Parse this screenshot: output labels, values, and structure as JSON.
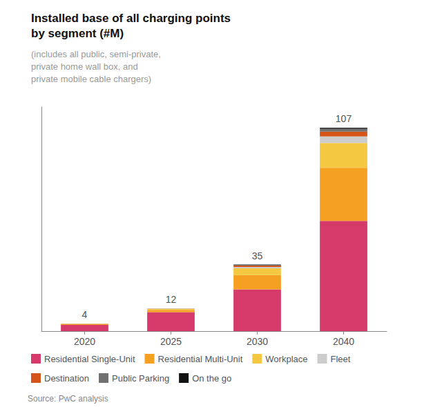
{
  "chart_data": {
    "type": "bar",
    "stacked": true,
    "title": "Installed base of all charging points\nby segment (#M)",
    "subtitle": "(includes all public, semi-private,\nprivate home wall box, and\nprivate mobile cable chargers)",
    "annotations": [
      "Source: PwC analysis"
    ],
    "categories": [
      "2020",
      "2025",
      "2030",
      "2040"
    ],
    "series": [
      {
        "name": "Residential Single-Unit",
        "color": "#D63A6A",
        "values": [
          3.3,
          10.0,
          22.0,
          58.0
        ]
      },
      {
        "name": "Residential Multi-Unit",
        "color": "#F5A020",
        "values": [
          0.35,
          1.2,
          7.5,
          28.0
        ]
      },
      {
        "name": "Workplace",
        "color": "#F5C842",
        "values": [
          0.2,
          0.5,
          3.5,
          13.0
        ]
      },
      {
        "name": "Fleet",
        "color": "#CCCCCC",
        "values": [
          0.05,
          0.15,
          0.8,
          3.5
        ]
      },
      {
        "name": "Destination",
        "color": "#D4541A",
        "values": [
          0.05,
          0.1,
          0.7,
          2.5
        ]
      },
      {
        "name": "Public Parking",
        "color": "#707070",
        "values": [
          0.03,
          0.05,
          0.4,
          1.5
        ]
      },
      {
        "name": "On the go",
        "color": "#111111",
        "values": [
          0.02,
          0.0,
          0.1,
          0.5
        ]
      }
    ],
    "totals": [
      4,
      12,
      35,
      107
    ],
    "ylim": [
      0,
      118
    ],
    "yticks": [],
    "grid": false,
    "legend": "bottom",
    "tick_labels": "x",
    "data_labels": false
  }
}
